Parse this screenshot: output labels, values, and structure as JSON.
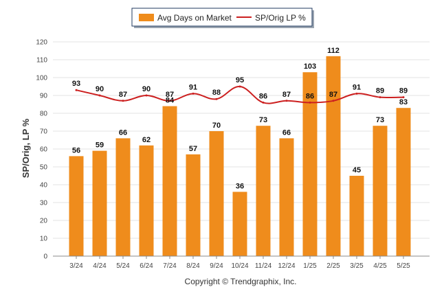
{
  "chart_data": {
    "type": "bar",
    "categories": [
      "3/24",
      "4/24",
      "5/24",
      "6/24",
      "7/24",
      "8/24",
      "9/24",
      "10/24",
      "11/24",
      "12/24",
      "1/25",
      "2/25",
      "3/25",
      "4/25",
      "5/25"
    ],
    "series": [
      {
        "name": "Avg Days on Market",
        "type": "bar",
        "color": "#ef8c1c",
        "values": [
          56,
          59,
          66,
          62,
          84,
          57,
          70,
          36,
          73,
          66,
          103,
          112,
          45,
          73,
          83
        ]
      },
      {
        "name": "SP/Orig LP %",
        "type": "line",
        "color": "#cc1f1f",
        "values": [
          93,
          90,
          87,
          90,
          87,
          91,
          88,
          95,
          86,
          87,
          86,
          87,
          91,
          89,
          89
        ]
      }
    ],
    "ylabel": "SP/Orig, LP %",
    "ylim": [
      0,
      120
    ],
    "yticks": [
      0,
      10,
      20,
      30,
      40,
      50,
      60,
      70,
      80,
      90,
      100,
      110,
      120
    ],
    "grid": true,
    "legend": "top-center"
  },
  "footer": {
    "credit": "Copyright © Trendgraphix, Inc."
  }
}
